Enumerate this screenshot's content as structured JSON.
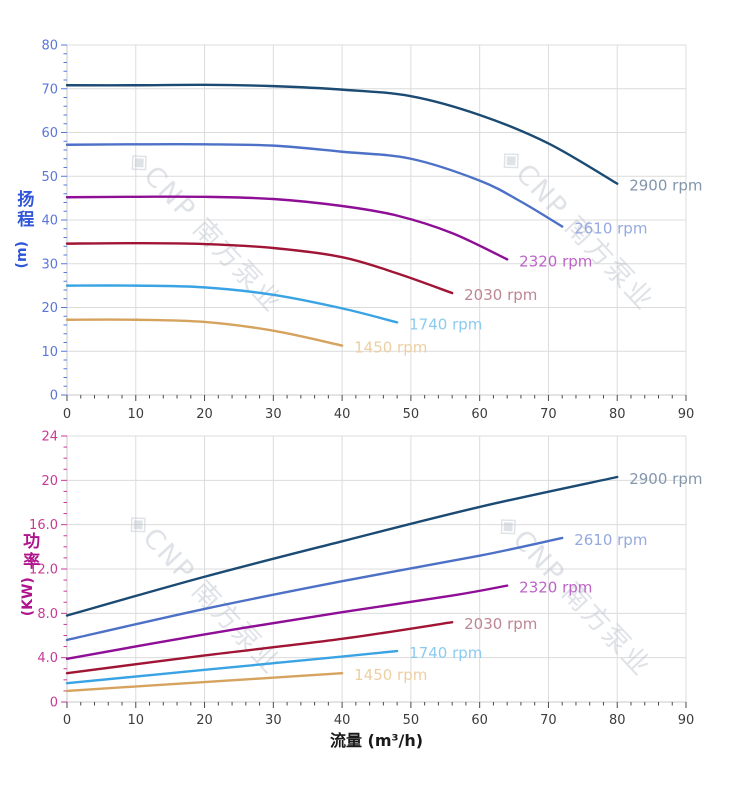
{
  "page": {
    "background": "#ffffff"
  },
  "watermark": {
    "logo": "◈",
    "text": "CNP 南方泵业",
    "color": "#b9c0cb"
  },
  "x_axis_title": "流量 (m³/h)",
  "chart_data": [
    {
      "id": "head",
      "type": "line",
      "ylabel": "扬程 (m)",
      "ylabel_chars": "扬程",
      "ylabel_unit": "(m)",
      "xlabel": "流量 (m³/h)",
      "x_range": [
        0,
        90
      ],
      "x_major": 10,
      "x_minor": 2,
      "y_range": [
        0,
        80
      ],
      "y_major": 10,
      "y_minor": 2,
      "x_tick_labels": [
        "0",
        "10",
        "20",
        "30",
        "40",
        "50",
        "60",
        "70",
        "80",
        "90"
      ],
      "y_tick_labels": [
        "0",
        "10",
        "20",
        "30",
        "40",
        "50",
        "60",
        "70",
        "80"
      ],
      "axis_label_color": "#5b76d8",
      "axis_title_color": "#2f55d8",
      "x_label_color": "#3c3c3c",
      "grid": true,
      "grid_color": "#dcdcdc",
      "series": [
        {
          "name": "2900 rpm",
          "color": "#1b4a73",
          "label_color": "#8396ab",
          "points": [
            [
              0,
              70.8
            ],
            [
              10,
              70.8
            ],
            [
              20,
              70.9
            ],
            [
              30,
              70.6
            ],
            [
              40,
              69.8
            ],
            [
              50,
              68.3
            ],
            [
              60,
              64.0
            ],
            [
              70,
              57.5
            ],
            [
              80,
              48.3
            ]
          ]
        },
        {
          "name": "2610 rpm",
          "color": "#4d71c6",
          "label_color": "#96a9e0",
          "points": [
            [
              0,
              57.2
            ],
            [
              10,
              57.3
            ],
            [
              20,
              57.3
            ],
            [
              30,
              57.0
            ],
            [
              40,
              55.6
            ],
            [
              50,
              54.0
            ],
            [
              60,
              49.0
            ],
            [
              66,
              44.2
            ],
            [
              72,
              38.5
            ]
          ]
        },
        {
          "name": "2320 rpm",
          "color": "#8e0e96",
          "label_color": "#bd64c8",
          "points": [
            [
              0,
              45.2
            ],
            [
              10,
              45.3
            ],
            [
              20,
              45.3
            ],
            [
              30,
              44.8
            ],
            [
              40,
              43.2
            ],
            [
              48,
              41.0
            ],
            [
              56,
              37.0
            ],
            [
              64,
              31.0
            ]
          ]
        },
        {
          "name": "2030 rpm",
          "color": "#a01535",
          "label_color": "#bd8694",
          "points": [
            [
              0,
              34.6
            ],
            [
              10,
              34.7
            ],
            [
              20,
              34.5
            ],
            [
              30,
              33.6
            ],
            [
              40,
              31.5
            ],
            [
              48,
              27.8
            ],
            [
              56,
              23.3
            ]
          ]
        },
        {
          "name": "1740 rpm",
          "color": "#39a3e3",
          "label_color": "#8ccaf0",
          "points": [
            [
              0,
              25.0
            ],
            [
              10,
              25.0
            ],
            [
              20,
              24.6
            ],
            [
              30,
              22.9
            ],
            [
              40,
              19.8
            ],
            [
              48,
              16.6
            ]
          ]
        },
        {
          "name": "1450 rpm",
          "color": "#d6a35f",
          "label_color": "#eccfa2",
          "points": [
            [
              0,
              17.2
            ],
            [
              10,
              17.2
            ],
            [
              20,
              16.7
            ],
            [
              30,
              14.7
            ],
            [
              40,
              11.3
            ]
          ]
        }
      ]
    },
    {
      "id": "power",
      "type": "line",
      "ylabel": "功率 (KW)",
      "ylabel_chars": "功率",
      "ylabel_unit": "(KW)",
      "xlabel": "流量 (m³/h)",
      "x_range": [
        0,
        90
      ],
      "x_major": 10,
      "x_minor": 2,
      "y_range": [
        0,
        24
      ],
      "y_major": 4,
      "y_minor": 1,
      "x_tick_labels": [
        "0",
        "10",
        "20",
        "30",
        "40",
        "50",
        "60",
        "70",
        "80",
        "90"
      ],
      "y_tick_labels": [
        "0",
        "4.0",
        "8.0",
        "12.0",
        "16.0",
        "20",
        "24"
      ],
      "axis_label_color": "#c63a96",
      "axis_title_color": "#b0148c",
      "x_label_color": "#3c3c3c",
      "grid": true,
      "grid_color": "#dcdcdc",
      "series": [
        {
          "name": "2900 rpm",
          "color": "#1b4a73",
          "label_color": "#8396ab",
          "points": [
            [
              0,
              7.8
            ],
            [
              20,
              11.3
            ],
            [
              40,
              14.5
            ],
            [
              60,
              17.6
            ],
            [
              80,
              20.3
            ]
          ]
        },
        {
          "name": "2610 rpm",
          "color": "#4d71c6",
          "label_color": "#96a9e0",
          "points": [
            [
              0,
              5.6
            ],
            [
              20,
              8.4
            ],
            [
              40,
              10.9
            ],
            [
              60,
              13.2
            ],
            [
              72,
              14.8
            ]
          ]
        },
        {
          "name": "2320 rpm",
          "color": "#8e0e96",
          "label_color": "#bd64c8",
          "points": [
            [
              0,
              3.9
            ],
            [
              20,
              6.1
            ],
            [
              40,
              8.1
            ],
            [
              56,
              9.6
            ],
            [
              64,
              10.5
            ]
          ]
        },
        {
          "name": "2030 rpm",
          "color": "#a01535",
          "label_color": "#bd8694",
          "points": [
            [
              0,
              2.6
            ],
            [
              20,
              4.2
            ],
            [
              40,
              5.7
            ],
            [
              56,
              7.2
            ]
          ]
        },
        {
          "name": "1740 rpm",
          "color": "#39a3e3",
          "label_color": "#8ccaf0",
          "points": [
            [
              0,
              1.7
            ],
            [
              20,
              2.9
            ],
            [
              40,
              4.1
            ],
            [
              48,
              4.6
            ]
          ]
        },
        {
          "name": "1450 rpm",
          "color": "#d6a35f",
          "label_color": "#eccfa2",
          "points": [
            [
              0,
              1.0
            ],
            [
              20,
              1.8
            ],
            [
              40,
              2.6
            ]
          ]
        }
      ]
    }
  ]
}
